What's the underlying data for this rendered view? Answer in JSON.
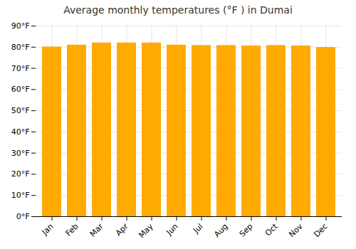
{
  "chart_data": {
    "type": "bar",
    "title": "Average monthly temperatures (°F ) in Dumai",
    "categories": [
      "Jan",
      "Feb",
      "Mar",
      "Apr",
      "May",
      "Jun",
      "Jul",
      "Aug",
      "Sep",
      "Oct",
      "Nov",
      "Dec"
    ],
    "values": [
      80.1,
      81.0,
      82.0,
      82.0,
      82.0,
      81.0,
      80.8,
      80.8,
      80.6,
      80.8,
      80.6,
      79.9
    ],
    "color": "#FFAA00",
    "ylim": [
      0,
      90
    ],
    "yticks": [
      {
        "value": 0,
        "label": "0°F"
      },
      {
        "value": 10,
        "label": "10°F"
      },
      {
        "value": 20,
        "label": "20°F"
      },
      {
        "value": 30,
        "label": "30°F"
      },
      {
        "value": 40,
        "label": "40°F"
      },
      {
        "value": 50,
        "label": "50°F"
      },
      {
        "value": 60,
        "label": "60°F"
      },
      {
        "value": 70,
        "label": "70°F"
      },
      {
        "value": 80,
        "label": "80°F"
      },
      {
        "value": 90,
        "label": "90°F"
      }
    ],
    "grid": true
  }
}
